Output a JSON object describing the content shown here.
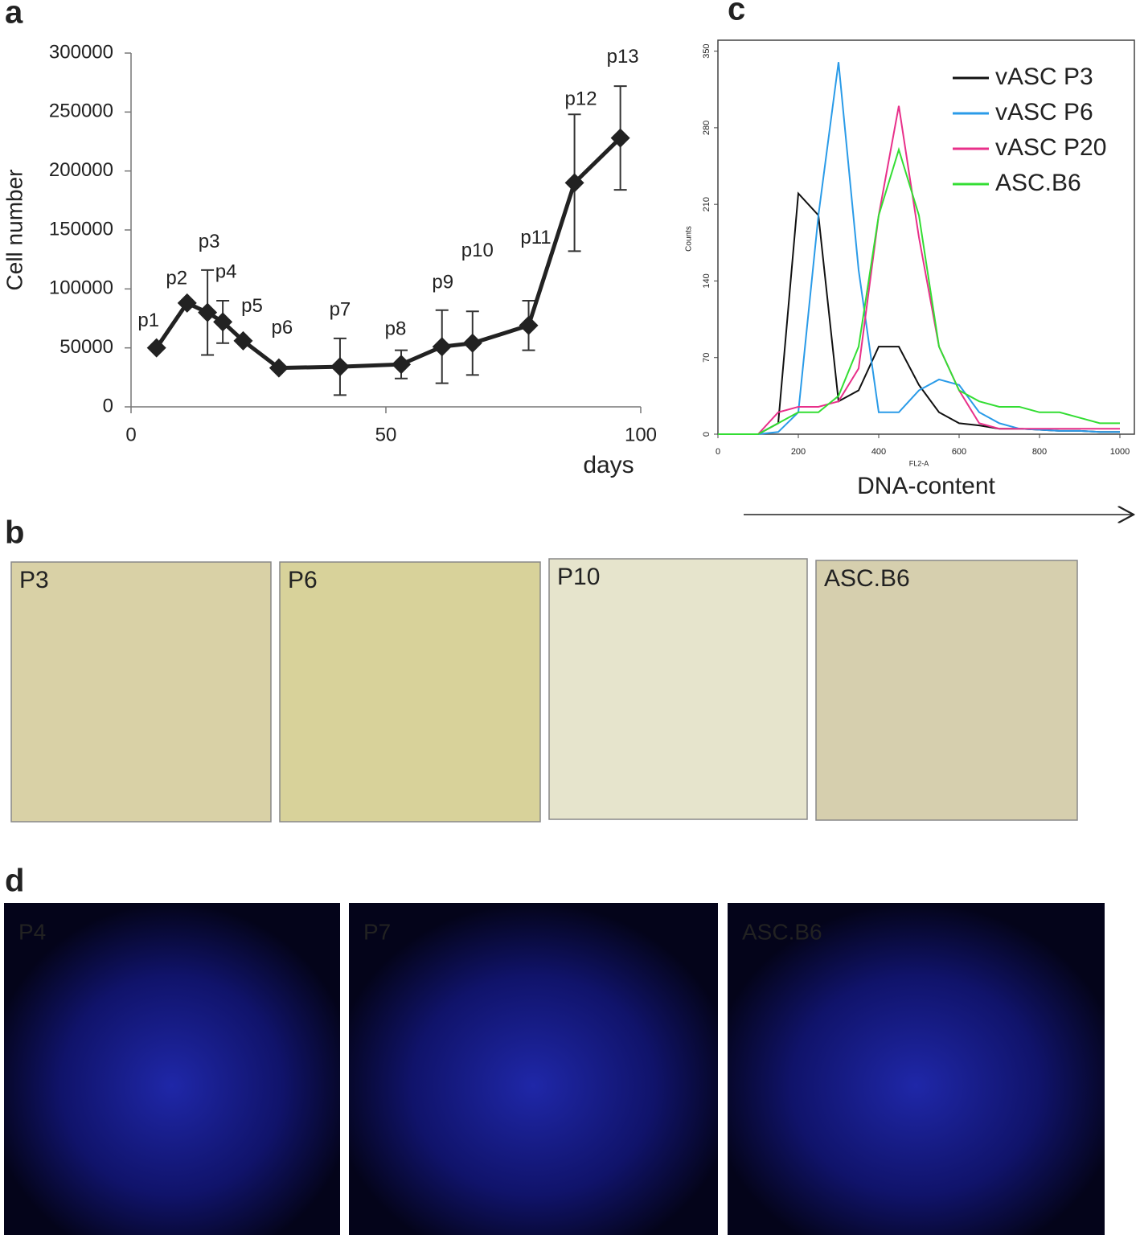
{
  "panel_labels": [
    "a",
    "b",
    "c",
    "d"
  ],
  "chart_data": [
    {
      "type": "line",
      "x_label": "days",
      "y_label": "Cell number",
      "color": "#222222",
      "x": [
        5,
        11,
        15,
        18,
        22,
        29,
        41,
        53,
        61,
        67,
        78,
        87,
        96
      ],
      "point_labels": [
        "p1",
        "p2",
        "p3",
        "p4",
        "p5",
        "p6",
        "p7",
        "p8",
        "p9",
        "p10",
        "p11",
        "p12",
        "p13"
      ],
      "values": [
        50000,
        88000,
        80000,
        72000,
        56000,
        33000,
        34000,
        36000,
        51000,
        54000,
        69000,
        190000,
        228000
      ],
      "errors": [
        null,
        null,
        36000,
        18000,
        null,
        null,
        24000,
        12000,
        31000,
        27000,
        21000,
        58000,
        44000
      ],
      "xlim": [
        0,
        100
      ],
      "xticks": [
        0,
        50,
        100
      ],
      "ylim": [
        0,
        300000
      ],
      "yticks": [
        0,
        50000,
        100000,
        150000,
        200000,
        250000,
        300000
      ]
    },
    {
      "type": "line",
      "x_label": "DNA-content",
      "x_axis_name": "FL2-A",
      "y_label": "Counts",
      "legend": "top-right",
      "x": [
        0,
        50,
        100,
        150,
        200,
        250,
        300,
        350,
        400,
        450,
        500,
        550,
        600,
        650,
        700,
        750,
        800,
        850,
        900,
        950,
        1000
      ],
      "series": [
        {
          "name": "vASC P3",
          "color": "#111111",
          "values": [
            0,
            0,
            0,
            10,
            220,
            200,
            30,
            40,
            80,
            80,
            45,
            20,
            10,
            8,
            5,
            5,
            4,
            3,
            3,
            2,
            2
          ]
        },
        {
          "name": "vASC P6",
          "color": "#2a9be8",
          "values": [
            0,
            0,
            0,
            2,
            20,
            200,
            340,
            150,
            20,
            20,
            40,
            50,
            45,
            20,
            10,
            5,
            4,
            3,
            3,
            2,
            2
          ]
        },
        {
          "name": "vASC P20",
          "color": "#e8308a",
          "values": [
            0,
            0,
            0,
            20,
            25,
            25,
            30,
            60,
            200,
            300,
            180,
            80,
            40,
            10,
            5,
            5,
            5,
            5,
            5,
            5,
            5
          ]
        },
        {
          "name": "ASC.B6",
          "color": "#33dd33",
          "values": [
            0,
            0,
            0,
            10,
            20,
            20,
            35,
            80,
            200,
            260,
            200,
            80,
            40,
            30,
            25,
            25,
            20,
            20,
            15,
            10,
            10
          ]
        }
      ],
      "xlim": [
        0,
        1036
      ],
      "xticks": [
        0,
        200,
        400,
        600,
        800,
        1000
      ],
      "ylim": [
        0,
        360
      ],
      "yticks": [
        0,
        70,
        140,
        210,
        280,
        350
      ]
    }
  ],
  "images_b": [
    "P3",
    "P6",
    "P10",
    "ASC.B6"
  ],
  "images_d": [
    "P4",
    "P7",
    "ASC.B6"
  ]
}
